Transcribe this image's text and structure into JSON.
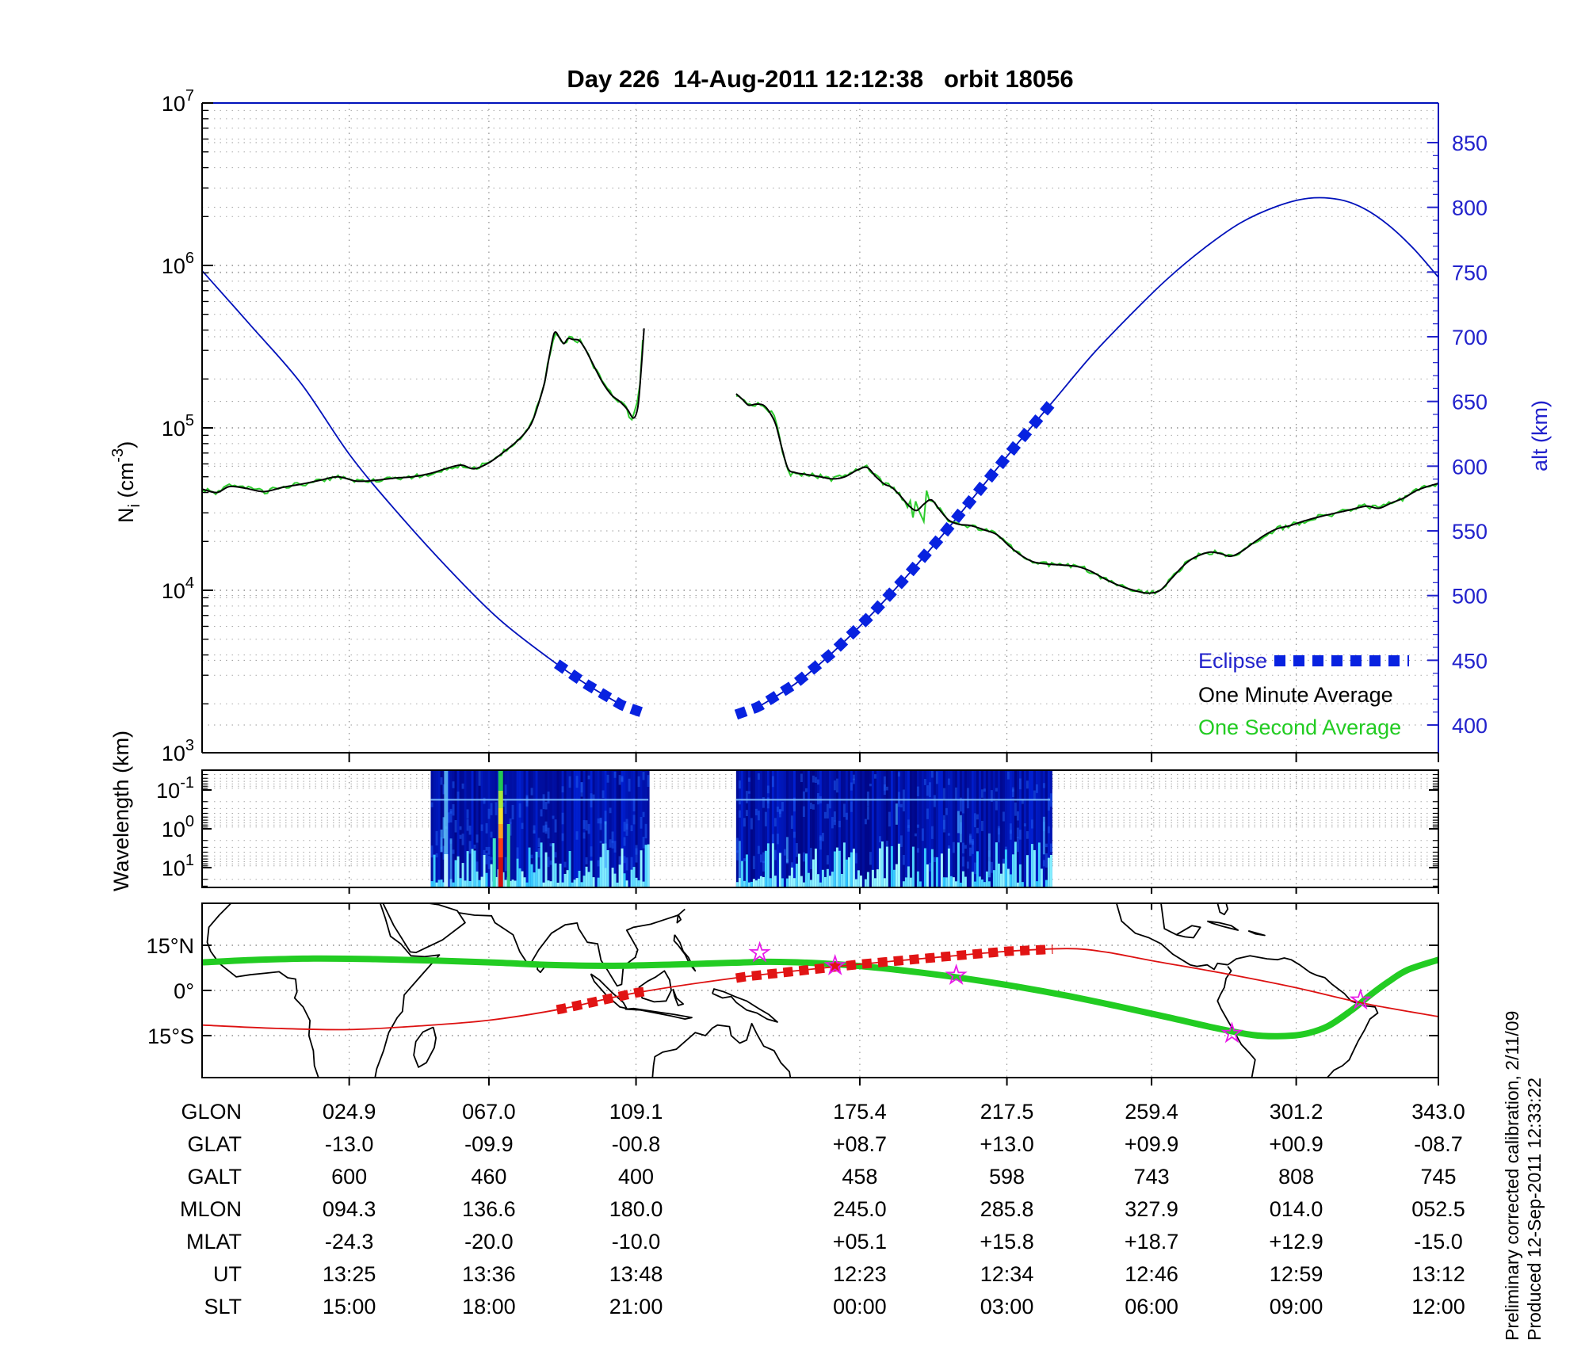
{
  "title": "Day 226  14-Aug-2011 12:12:38   orbit 18056",
  "side_notes": {
    "line1": "Preliminary corrected calibration, 2/11/09",
    "line2": "Produced 12-Sep-2011 12:33:22"
  },
  "legend": {
    "eclipse": "Eclipse",
    "one_minute": "One Minute Average",
    "one_second": "One Second Average"
  },
  "colors": {
    "blue": "#2222cc",
    "curve_blue": "#0011bb",
    "eclipse_blue": "#0822e0",
    "green": "#22cc22",
    "curve_green": "#2ecc2e",
    "black": "#000000",
    "red": "#dd1111",
    "magenta": "#e81ae8"
  },
  "axes": {
    "ni_label_parts": {
      "base": "N",
      "sub": "i",
      "mid": " (cm",
      "sup": "-3",
      "close": ")"
    },
    "ni_tick_exponents": [
      7,
      6,
      5,
      4,
      3
    ],
    "alt_label": "alt (km)",
    "alt_ticks": [
      850,
      800,
      750,
      700,
      650,
      600,
      550,
      500,
      450,
      400
    ],
    "wavelength_label": "Wavelength (km)",
    "wave_tick_exponents": [
      -1,
      0,
      1
    ],
    "map_lat_ticks": [
      {
        "label": "15°N",
        "lat": 15
      },
      {
        "label": "0°",
        "lat": 0
      },
      {
        "label": "15°S",
        "lat": -15
      }
    ]
  },
  "table": {
    "rows": [
      {
        "label": "GLON",
        "values": [
          "024.9",
          "067.0",
          "109.1",
          "175.4",
          "217.5",
          "259.4",
          "301.2",
          "343.0"
        ]
      },
      {
        "label": "GLAT",
        "values": [
          "-13.0",
          "-09.9",
          "-00.8",
          "+08.7",
          "+13.0",
          "+09.9",
          "+00.9",
          "-08.7"
        ]
      },
      {
        "label": "GALT",
        "values": [
          "600",
          "460",
          "400",
          "458",
          "598",
          "743",
          "808",
          "745"
        ]
      },
      {
        "label": "MLON",
        "values": [
          "094.3",
          "136.6",
          "180.0",
          "245.0",
          "285.8",
          "327.9",
          "014.0",
          "052.5"
        ]
      },
      {
        "label": "MLAT",
        "values": [
          "-24.3",
          "-20.0",
          "-10.0",
          "+05.1",
          "+15.8",
          "+18.7",
          "+12.9",
          "-15.0"
        ]
      },
      {
        "label": "UT",
        "values": [
          "13:25",
          "13:36",
          "13:48",
          "12:23",
          "12:34",
          "12:46",
          "12:59",
          "13:12"
        ]
      },
      {
        "label": "SLT",
        "values": [
          "15:00",
          "18:00",
          "21:00",
          "00:00",
          "03:00",
          "06:00",
          "09:00",
          "12:00"
        ]
      }
    ]
  },
  "chart_data": {
    "type": "line",
    "title": "Day 226  14-Aug-2011 12:12:38   orbit 18056",
    "ylabel_left": "Ni (cm-3)",
    "ylim_left_log10": [
      3,
      7
    ],
    "ylabel_right": "alt (km)",
    "ylim_right": [
      395,
      880
    ],
    "col_fracs": [
      0.119,
      0.232,
      0.351,
      0.532,
      0.651,
      0.768,
      0.885,
      1.0
    ],
    "data_gap_frac": [
      0.36,
      0.432
    ],
    "eclipse_fracs": [
      [
        0.287,
        0.36
      ],
      [
        0.432,
        0.689
      ]
    ],
    "altitude_km": [
      [
        0,
        751
      ],
      [
        0.04,
        708
      ],
      [
        0.08,
        664
      ],
      [
        0.12,
        608
      ],
      [
        0.16,
        562
      ],
      [
        0.2,
        520
      ],
      [
        0.24,
        482
      ],
      [
        0.28,
        452
      ],
      [
        0.31,
        432
      ],
      [
        0.34,
        415
      ],
      [
        0.37,
        405
      ],
      [
        0.394,
        400
      ],
      [
        0.42,
        404
      ],
      [
        0.45,
        414
      ],
      [
        0.48,
        432
      ],
      [
        0.51,
        456
      ],
      [
        0.54,
        484
      ],
      [
        0.57,
        515
      ],
      [
        0.6,
        548
      ],
      [
        0.63,
        583
      ],
      [
        0.66,
        618
      ],
      [
        0.69,
        652
      ],
      [
        0.72,
        686
      ],
      [
        0.75,
        716
      ],
      [
        0.78,
        744
      ],
      [
        0.81,
        768
      ],
      [
        0.84,
        788
      ],
      [
        0.87,
        801
      ],
      [
        0.895,
        807
      ],
      [
        0.92,
        806
      ],
      [
        0.94,
        799
      ],
      [
        0.96,
        786
      ],
      [
        0.98,
        768
      ],
      [
        1.0,
        746
      ]
    ],
    "density_cm3_segments": [
      [
        [
          0,
          42000
        ],
        [
          0.012,
          40000
        ],
        [
          0.022,
          43500
        ],
        [
          0.035,
          42500
        ],
        [
          0.05,
          40500
        ],
        [
          0.065,
          43000
        ],
        [
          0.08,
          45000
        ],
        [
          0.095,
          47500
        ],
        [
          0.11,
          50000
        ],
        [
          0.125,
          47000
        ],
        [
          0.14,
          47500
        ],
        [
          0.155,
          49000
        ],
        [
          0.17,
          50000
        ],
        [
          0.185,
          52500
        ],
        [
          0.2,
          57000
        ],
        [
          0.21,
          59000
        ],
        [
          0.22,
          56000
        ],
        [
          0.232,
          61000
        ],
        [
          0.245,
          72000
        ],
        [
          0.257,
          86000
        ],
        [
          0.266,
          105000
        ],
        [
          0.272,
          140000
        ],
        [
          0.277,
          190000
        ],
        [
          0.281,
          280000
        ],
        [
          0.285,
          385000
        ],
        [
          0.289,
          360000
        ],
        [
          0.2925,
          330000
        ],
        [
          0.296,
          355000
        ],
        [
          0.3,
          350000
        ],
        [
          0.305,
          345000
        ],
        [
          0.31,
          305000
        ],
        [
          0.317,
          240000
        ],
        [
          0.324,
          190000
        ],
        [
          0.331,
          160000
        ],
        [
          0.338,
          145000
        ],
        [
          0.344,
          130000
        ],
        [
          0.349,
          115000
        ],
        [
          0.3525,
          135000
        ],
        [
          0.355,
          220000
        ],
        [
          0.3575,
          410000
        ]
      ],
      [
        [
          0.432,
          162000
        ],
        [
          0.437,
          150000
        ],
        [
          0.442,
          138000
        ],
        [
          0.448,
          140000
        ],
        [
          0.454,
          138000
        ],
        [
          0.459,
          125000
        ],
        [
          0.464,
          105000
        ],
        [
          0.469,
          75000
        ],
        [
          0.474,
          56000
        ],
        [
          0.48,
          53000
        ],
        [
          0.49,
          51500
        ],
        [
          0.5,
          50000
        ],
        [
          0.51,
          48500
        ],
        [
          0.52,
          50000
        ],
        [
          0.53,
          55000
        ],
        [
          0.538,
          57000
        ],
        [
          0.545,
          50000
        ],
        [
          0.552,
          45000
        ],
        [
          0.558,
          43000
        ],
        [
          0.565,
          38000
        ],
        [
          0.572,
          33000
        ],
        [
          0.578,
          31000
        ],
        [
          0.584,
          34000
        ],
        [
          0.59,
          36000
        ],
        [
          0.597,
          31000
        ],
        [
          0.604,
          27000
        ],
        [
          0.612,
          25500
        ],
        [
          0.622,
          25000
        ],
        [
          0.633,
          23500
        ],
        [
          0.643,
          22000
        ],
        [
          0.652,
          19000
        ],
        [
          0.662,
          16500
        ],
        [
          0.672,
          15000
        ],
        [
          0.684,
          14500
        ],
        [
          0.696,
          14300
        ],
        [
          0.708,
          14000
        ],
        [
          0.718,
          13200
        ],
        [
          0.728,
          12000
        ],
        [
          0.738,
          11000
        ],
        [
          0.748,
          10300
        ],
        [
          0.758,
          9800
        ],
        [
          0.766,
          9600
        ],
        [
          0.775,
          10000
        ],
        [
          0.784,
          11800
        ],
        [
          0.793,
          14000
        ],
        [
          0.8,
          15500
        ],
        [
          0.808,
          16600
        ],
        [
          0.816,
          17200
        ],
        [
          0.824,
          16800
        ],
        [
          0.832,
          16200
        ],
        [
          0.84,
          17200
        ],
        [
          0.85,
          19500
        ],
        [
          0.86,
          22000
        ],
        [
          0.87,
          24000
        ],
        [
          0.88,
          25000
        ],
        [
          0.892,
          26800
        ],
        [
          0.905,
          28500
        ],
        [
          0.918,
          30000
        ],
        [
          0.93,
          31500
        ],
        [
          0.942,
          33000
        ],
        [
          0.952,
          32000
        ],
        [
          0.962,
          34500
        ],
        [
          0.972,
          37000
        ],
        [
          0.982,
          41000
        ],
        [
          0.991,
          43500
        ],
        [
          1.0,
          45500
        ]
      ]
    ],
    "spectrogram": {
      "wavelength_km_ticks": [
        0.1,
        1,
        10
      ],
      "blocks_frac": [
        [
          0.185,
          0.361
        ],
        [
          0.432,
          0.686
        ]
      ],
      "rainbow_stripe_frac": 0.2415,
      "cyan_stripe_frac": 0.197
    },
    "map": {
      "lat_range": [
        -29,
        29
      ],
      "lon_left_edge": -18,
      "green_track": [
        [
          0,
          9.3
        ],
        [
          0.04,
          10.1
        ],
        [
          0.09,
          10.6
        ],
        [
          0.14,
          10.4
        ],
        [
          0.19,
          9.9
        ],
        [
          0.24,
          9.2
        ],
        [
          0.28,
          8.5
        ],
        [
          0.33,
          8.2
        ],
        [
          0.38,
          8.6
        ],
        [
          0.43,
          9.2
        ],
        [
          0.46,
          9.5
        ],
        [
          0.5,
          9.0
        ],
        [
          0.54,
          7.8
        ],
        [
          0.58,
          6.0
        ],
        [
          0.62,
          3.8
        ],
        [
          0.66,
          1.2
        ],
        [
          0.7,
          -1.8
        ],
        [
          0.74,
          -5.2
        ],
        [
          0.78,
          -8.8
        ],
        [
          0.82,
          -12.5
        ],
        [
          0.85,
          -14.8
        ],
        [
          0.87,
          -15.2
        ],
        [
          0.89,
          -14.6
        ],
        [
          0.91,
          -12.0
        ],
        [
          0.93,
          -6.5
        ],
        [
          0.945,
          -1.5
        ],
        [
          0.96,
          3.0
        ],
        [
          0.975,
          6.8
        ],
        [
          1.0,
          10.2
        ]
      ],
      "red_track": [
        [
          0,
          -11.5
        ],
        [
          0.06,
          -12.6
        ],
        [
          0.119,
          -13.0
        ],
        [
          0.175,
          -11.8
        ],
        [
          0.232,
          -9.9
        ],
        [
          0.29,
          -6.2
        ],
        [
          0.351,
          -0.8
        ],
        [
          0.44,
          4.6
        ],
        [
          0.532,
          8.7
        ],
        [
          0.6,
          11.2
        ],
        [
          0.651,
          13.0
        ],
        [
          0.7,
          13.9
        ],
        [
          0.73,
          12.8
        ],
        [
          0.768,
          9.9
        ],
        [
          0.83,
          5.4
        ],
        [
          0.885,
          0.9
        ],
        [
          0.94,
          -4.3
        ],
        [
          1.0,
          -8.7
        ]
      ],
      "red_dash_fracs": [
        [
          0.287,
          0.362
        ],
        [
          0.432,
          0.691
        ]
      ],
      "stars": [
        [
          0.451,
          12.5
        ],
        [
          0.512,
          8.2
        ],
        [
          0.61,
          5.0
        ],
        [
          0.833,
          -14.3
        ],
        [
          0.937,
          -3.2
        ]
      ]
    }
  }
}
